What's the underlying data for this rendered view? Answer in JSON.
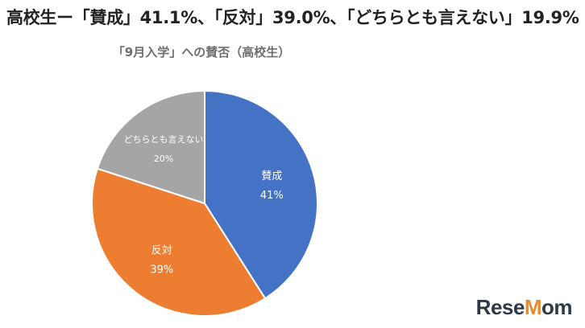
{
  "headline": "高校生ー「賛成」41.1%、「反対」39.0%、「どちらとも言えない」19.9%",
  "watermark": "ReseMom",
  "chart_data": {
    "type": "pie",
    "title": "「9月入学」への賛否（高校生）",
    "slices": [
      {
        "label": "賛成",
        "value": 41,
        "value_label": "41%",
        "color": "#4472c4"
      },
      {
        "label": "反対",
        "value": 39,
        "value_label": "39%",
        "color": "#ed7d31"
      },
      {
        "label": "どちらとも言えない",
        "value": 20,
        "value_label": "20%",
        "color": "#a5a5a5"
      }
    ],
    "start": "12 o'clock",
    "direction": "clockwise",
    "legend": "none"
  }
}
